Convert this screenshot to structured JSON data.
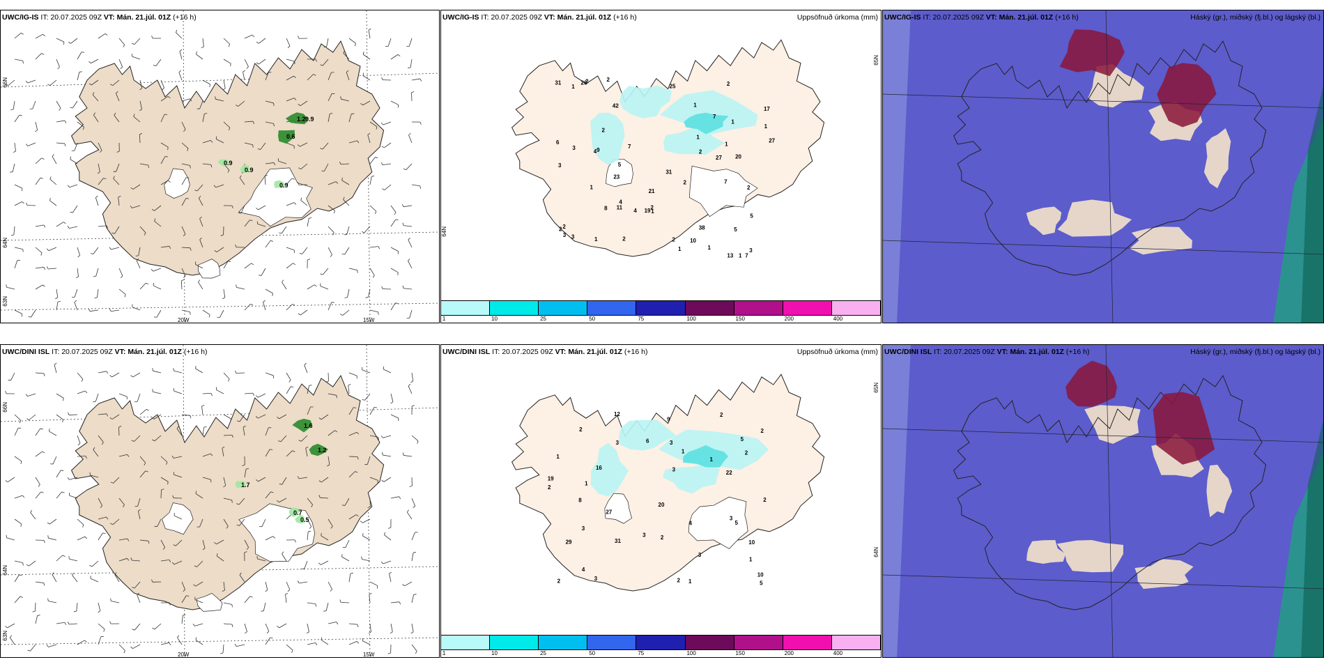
{
  "panels": [
    {
      "id": "p1",
      "model": "UWC/IG-IS",
      "it_label": "IT:",
      "it": "20.07.2025 09Z",
      "vt_label": "VT:",
      "vt": "Mán. 21.júl. 01Z",
      "lead": "(+16 h)",
      "right": "",
      "type": "wind",
      "labels": [
        "1.2",
        "0.6",
        "0.9",
        "0.9",
        "0.9",
        "0.9"
      ],
      "axis": {
        "lat": [
          "66N",
          "64N",
          "63N"
        ],
        "lon": [
          "20W",
          "15W"
        ]
      }
    },
    {
      "id": "p2",
      "model": "UWC/IG-IS",
      "it_label": "IT:",
      "it": "20.07.2025 09Z",
      "vt_label": "VT:",
      "vt": "Mán. 21.júl. 01Z",
      "lead": "(+16 h)",
      "right": "Uppsöfnuð úrkoma (mm)",
      "type": "precip",
      "labels": [
        "21",
        "4",
        "26",
        "7",
        "7",
        "42",
        "19",
        "23",
        "11",
        "27",
        "20",
        "25",
        "31",
        "13",
        "5",
        "38",
        "31",
        "27",
        "17",
        "7",
        "1",
        "9",
        "10",
        "8",
        "5",
        "2",
        "2",
        "2",
        "1",
        "2",
        "4",
        "4",
        "3",
        "5",
        "7",
        "6",
        "3",
        "2",
        "1",
        "2",
        "3",
        "3",
        "2",
        "1",
        "1",
        "3",
        "2",
        "2",
        "2",
        "1",
        "1",
        "1",
        "2",
        "2",
        "1",
        "1",
        "1",
        "1"
      ],
      "axis": {
        "lat": [
          "65N",
          "64N"
        ],
        "lon": []
      }
    },
    {
      "id": "p3",
      "model": "UWC/IG-IS",
      "it_label": "IT:",
      "it": "20.07.2025 09Z",
      "vt_label": "VT:",
      "vt": "Mán. 21.júl. 01Z",
      "lead": "(+16 h)",
      "right": "Háský (gr.), miðský (fj.bl.) og lágský (bl.)",
      "type": "cloud",
      "labels": [],
      "axis": {
        "lat": [],
        "lon": []
      }
    },
    {
      "id": "p4",
      "model": "UWC/DINI ISL",
      "it_label": "IT:",
      "it": "20.07.2025 09Z",
      "vt_label": "VT:",
      "vt": "Mán. 21.júl. 01Z",
      "lead": "(+16 h)",
      "right": "",
      "type": "wind",
      "labels": [
        "1.6",
        "1.2",
        "1.7",
        "0.7",
        "0.5"
      ],
      "axis": {
        "lat": [
          "66N",
          "64N",
          "63N"
        ],
        "lon": [
          "20W",
          "15W"
        ]
      }
    },
    {
      "id": "p5",
      "model": "UWC/DINI ISL",
      "it_label": "IT:",
      "it": "20.07.2025 09Z",
      "vt_label": "VT:",
      "vt": "Mán. 21.júl. 01Z",
      "lead": "(+16 h)",
      "right": "Uppsöfnuð úrkoma (mm)",
      "type": "precip",
      "labels": [
        "10",
        "5",
        "16",
        "5",
        "22",
        "31",
        "29",
        "20",
        "27",
        "19",
        "12",
        "6",
        "10",
        "3",
        "4",
        "3",
        "3",
        "2",
        "2",
        "3",
        "2",
        "2",
        "3",
        "5",
        "8",
        "9",
        "1",
        "2",
        "2",
        "4",
        "2",
        "3",
        "1",
        "1",
        "3",
        "2",
        "1",
        "2",
        "1",
        "1",
        "3"
      ],
      "axis": {
        "lat": [
          "65N",
          "64N"
        ],
        "lon": []
      }
    },
    {
      "id": "p6",
      "model": "UWC/DINI ISL",
      "it_label": "IT:",
      "it": "20.07.2025 09Z",
      "vt_label": "VT:",
      "vt": "Mán. 21.júl. 01Z",
      "lead": "(+16 h)",
      "right": "Háský (gr.), miðský (fj.bl.) og lágský (bl.)",
      "type": "cloud",
      "labels": [],
      "axis": {
        "lat": [],
        "lon": []
      }
    }
  ],
  "precip_colorbar": {
    "colors": [
      "#b8fafa",
      "#00eaea",
      "#00bff0",
      "#3366ee",
      "#2020b0",
      "#6e0a5a",
      "#b0108a",
      "#f010b0",
      "#f8b0f0"
    ],
    "labels": [
      "1",
      "10",
      "25",
      "50",
      "75",
      "100",
      "150",
      "200",
      "400"
    ]
  },
  "colors": {
    "land": "#ecdcc8",
    "land_light": "#fdf0e4",
    "sea": "#ffffff",
    "cloud_low": "#5c5ccc",
    "cloud_high": "#8a1538",
    "cloud_green": "#20a080",
    "precip_light": "#b8f4f4",
    "precip_mid": "#5ce0e0",
    "wind_green": "#2a8a2a"
  }
}
